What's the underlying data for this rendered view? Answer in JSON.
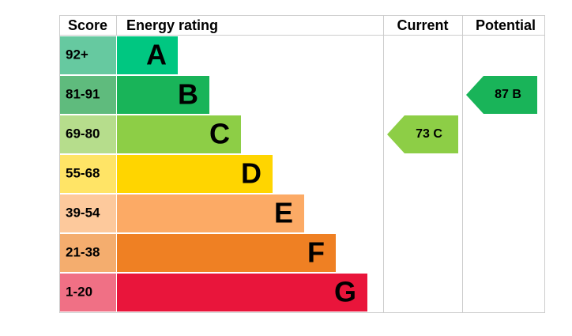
{
  "header": {
    "score": "Score",
    "rating": "Energy rating",
    "current": "Current",
    "potential": "Potential"
  },
  "bands": [
    {
      "score": "92+",
      "letter": "A",
      "color": "#00c781",
      "light": "#66c9a0"
    },
    {
      "score": "81-91",
      "letter": "B",
      "color": "#19b459",
      "light": "#5fbb7d"
    },
    {
      "score": "69-80",
      "letter": "C",
      "color": "#8dce46",
      "light": "#b6dd8c"
    },
    {
      "score": "55-68",
      "letter": "D",
      "color": "#ffd500",
      "light": "#ffe466"
    },
    {
      "score": "39-54",
      "letter": "E",
      "color": "#fcaa65",
      "light": "#fdc99c"
    },
    {
      "score": "21-38",
      "letter": "F",
      "color": "#ef8023",
      "light": "#f4ad6e"
    },
    {
      "score": "1-20",
      "letter": "G",
      "color": "#e9153b",
      "light": "#f07085"
    }
  ],
  "current": {
    "label": "73 C",
    "band": 2,
    "color": "#8dce46"
  },
  "potential": {
    "label": "87 B",
    "band": 1,
    "color": "#19b459"
  }
}
